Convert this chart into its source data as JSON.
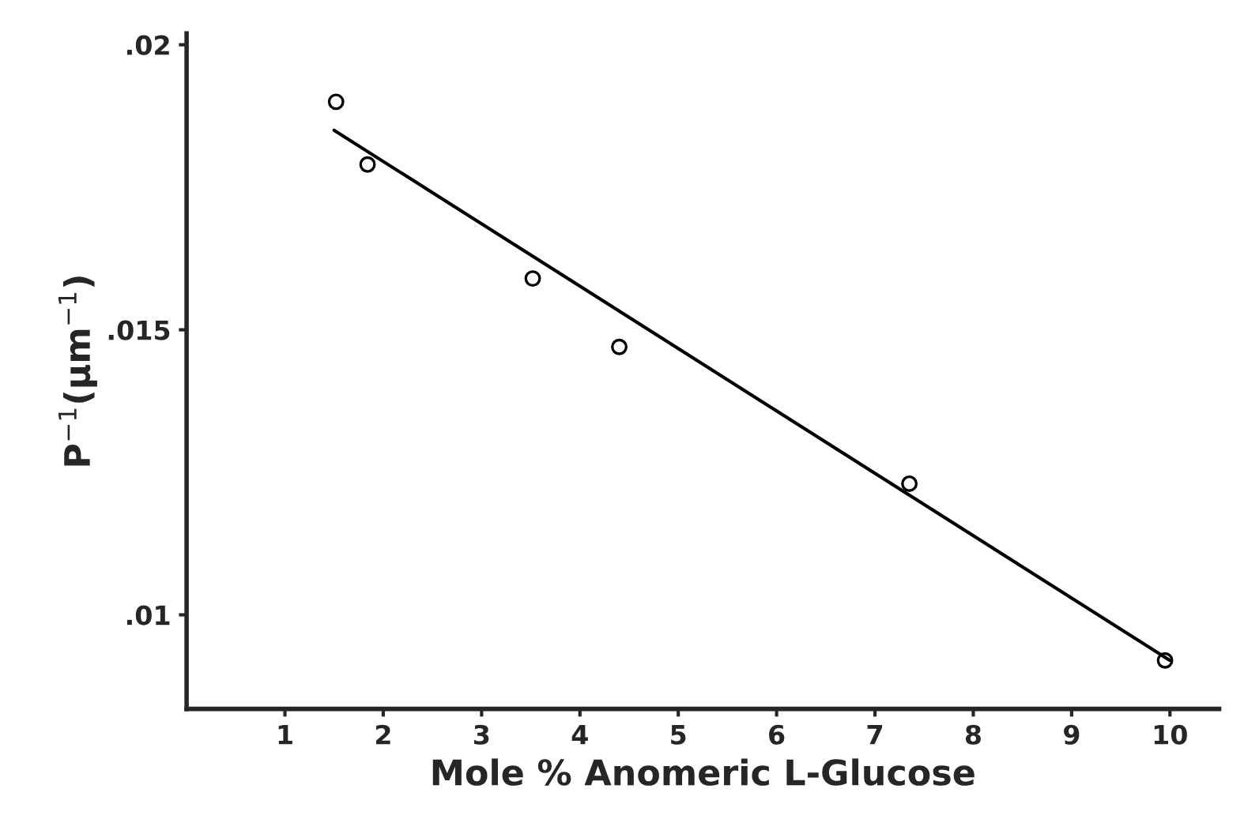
{
  "chart_data": {
    "type": "scatter",
    "xlabel": "Mole % Anomeric L-Glucose",
    "ylabel": "P$^{−1}$(µm$^{−1}$)",
    "x": [
      1.52,
      1.84,
      3.52,
      4.4,
      7.35,
      9.95
    ],
    "series": [
      {
        "color": "#000000",
        "marker": "circle",
        "values": [
          0.019,
          0.0179,
          0.0159,
          0.0147,
          0.0123,
          0.0092
        ]
      },
      {
        "type": "line",
        "color": "#000000",
        "marker": "none",
        "line_style": "solid",
        "x": [
          1.5,
          10.0
        ],
        "values": [
          0.0185,
          0.0092
        ]
      }
    ],
    "xlim": [
      0,
      10.5
    ],
    "xticks": [
      1,
      2,
      3,
      4,
      5,
      6,
      7,
      8,
      9,
      10
    ],
    "ylim": [
      0.00835,
      0.0202
    ],
    "yticks": [
      {
        "value": 0.01,
        "label": ".01"
      },
      {
        "value": 0.015,
        "label": ".015"
      },
      {
        "value": 0.02,
        "label": ".02"
      }
    ],
    "grid": false,
    "legend": false
  }
}
